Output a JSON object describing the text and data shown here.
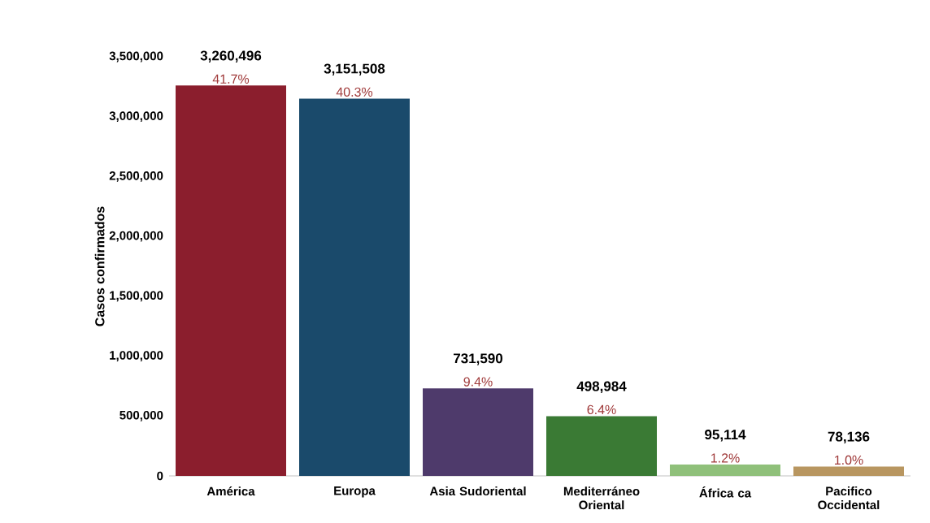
{
  "chart_data": {
    "type": "bar",
    "ylabel": "Casos confirmados",
    "categories": [
      "América",
      "Europa",
      "Asia Sudoriental",
      "Mediterráneo Oriental",
      "África ca",
      "Pacifico Occidental"
    ],
    "values": [
      3260496,
      3151508,
      731590,
      498984,
      95114,
      78136
    ],
    "colors": [
      "#8b1e2d",
      "#1a4a6b",
      "#4e3a6b",
      "#3a7a34",
      "#8fc07a",
      "#b89660"
    ],
    "ylim": [
      0,
      3500000
    ],
    "yticks": [
      {
        "value": 0,
        "label": "0"
      },
      {
        "value": 500000,
        "label": "500,000"
      },
      {
        "value": 1000000,
        "label": "1,000,000"
      },
      {
        "value": 1500000,
        "label": "1,500,000"
      },
      {
        "value": 2000000,
        "label": "2,000,000"
      },
      {
        "value": 2500000,
        "label": "2,500,000"
      },
      {
        "value": 3000000,
        "label": "3,000,000"
      },
      {
        "value": 3500000,
        "label": "3,500,000"
      }
    ],
    "value_labels": [
      "3,260,496",
      "3,151,508",
      "731,590",
      "498,984",
      "95,114",
      "78,136"
    ],
    "grid": false,
    "annotations": [
      "41.7%",
      "40.3%",
      "9.4%",
      "6.4%",
      "1.2%",
      "1.0%"
    ]
  }
}
